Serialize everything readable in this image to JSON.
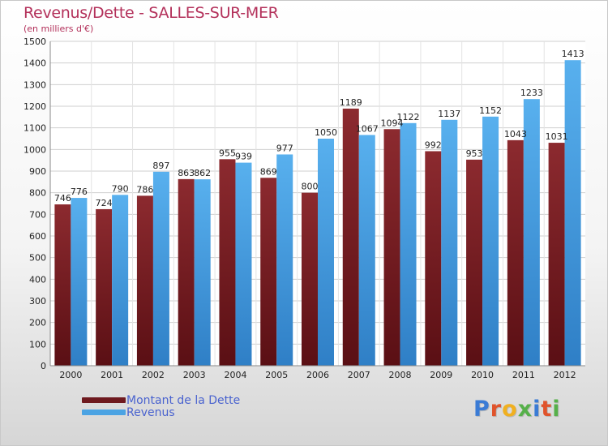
{
  "title": "Revenus/Dette - SALLES-SUR-MER",
  "subtitle": "(en milliers d'€)",
  "logo_text": "Proxiti",
  "logo_colors": [
    "#3a7bd5",
    "#e0532b",
    "#f0b020",
    "#56b04a",
    "#3a7bd5",
    "#e0532b",
    "#56b04a"
  ],
  "colors": {
    "dette": "#7f1f24",
    "revenus": "#4ba3e3",
    "title": "#b3305a",
    "legend_text": "#4a63cf",
    "grid": "#cfcfcf"
  },
  "chart_data": {
    "type": "bar",
    "title": "Revenus/Dette - SALLES-SUR-MER",
    "subtitle": "(en milliers d'€)",
    "categories": [
      "2000",
      "2001",
      "2002",
      "2003",
      "2004",
      "2005",
      "2006",
      "2007",
      "2008",
      "2009",
      "2010",
      "2011",
      "2012"
    ],
    "series": [
      {
        "name": "Montant de la Dette",
        "values": [
          746,
          724,
          786,
          863,
          955,
          869,
          800,
          1189,
          1094,
          992,
          953,
          1043,
          1031
        ]
      },
      {
        "name": "Revenus",
        "values": [
          776,
          790,
          897,
          862,
          939,
          977,
          1050,
          1067,
          1122,
          1137,
          1152,
          1233,
          1413
        ]
      }
    ],
    "ylim": [
      0,
      1500
    ],
    "yticks": [
      0,
      100,
      200,
      300,
      400,
      500,
      600,
      700,
      800,
      900,
      1000,
      1100,
      1200,
      1300,
      1400,
      1500
    ],
    "grid": true,
    "legend_position": "bottom-left"
  }
}
